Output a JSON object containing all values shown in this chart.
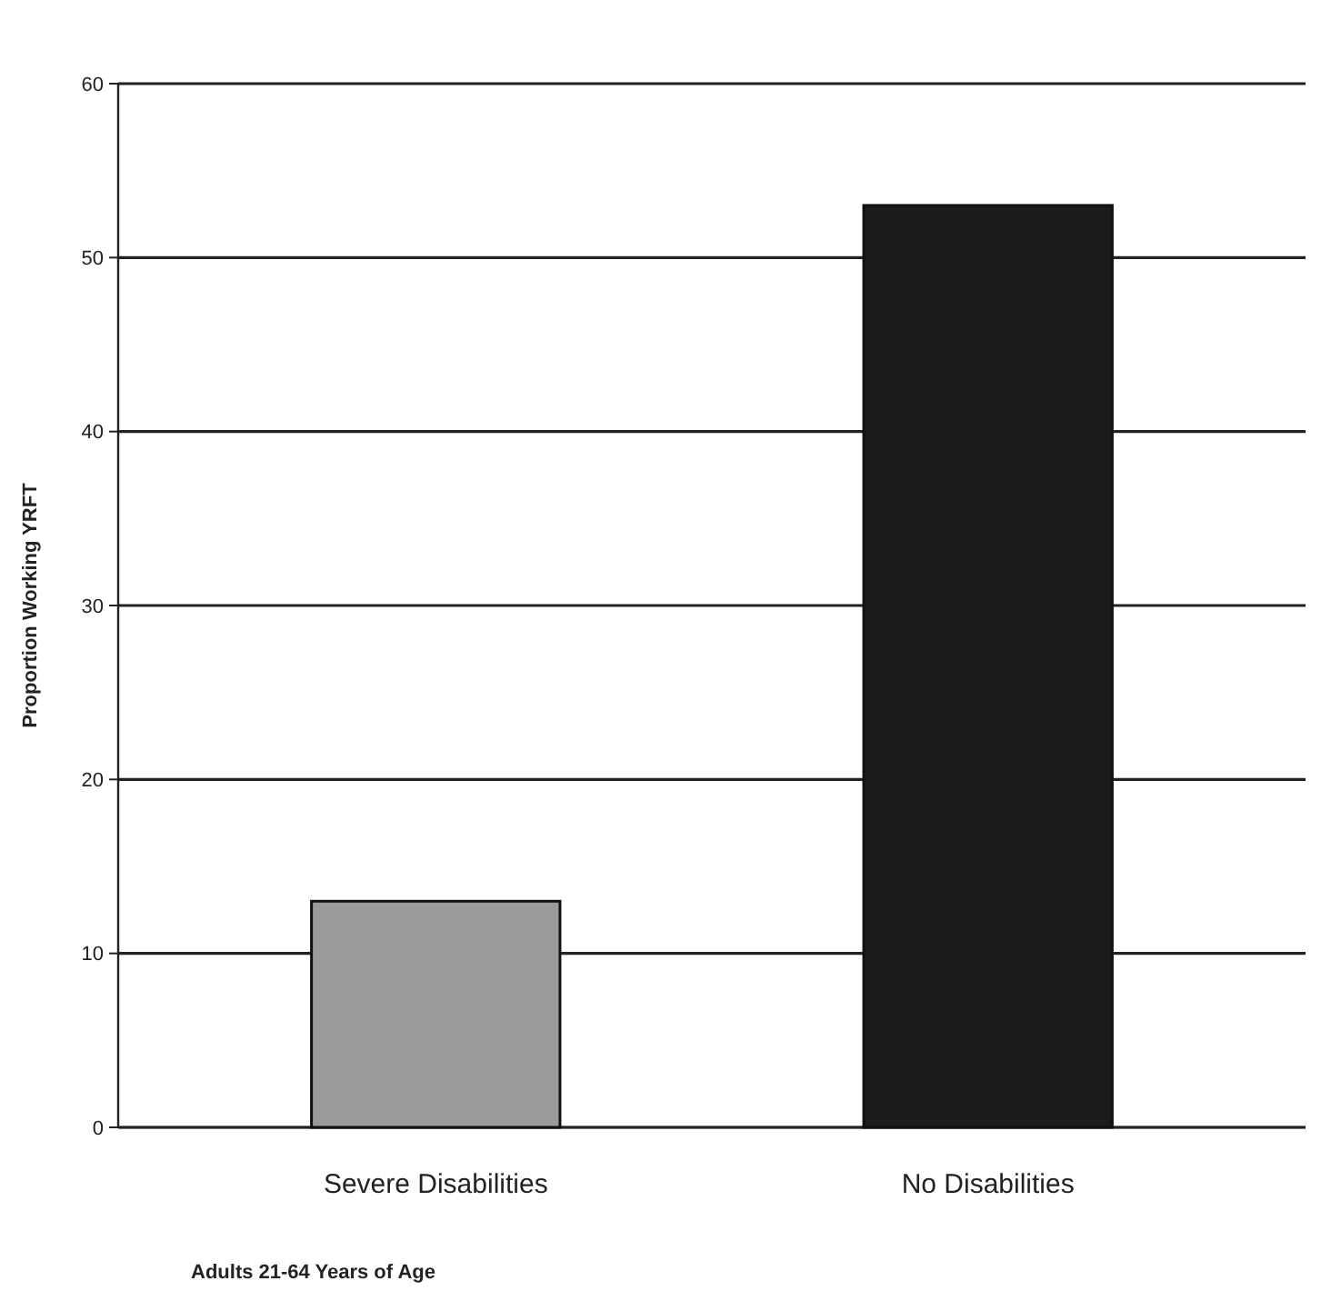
{
  "chart_data": {
    "type": "bar",
    "categories": [
      "Severe Disabilities",
      "No Disabilities"
    ],
    "values": [
      13,
      53
    ],
    "colors": [
      "#9a9a9a",
      "#1c1c1c"
    ],
    "ylabel": "Proportion Working YRFT",
    "xlabel": "Adults 21-64 Years of Age",
    "ylim": [
      0,
      60
    ],
    "yticks": [
      0,
      10,
      20,
      30,
      40,
      50,
      60
    ],
    "grid": "y"
  }
}
